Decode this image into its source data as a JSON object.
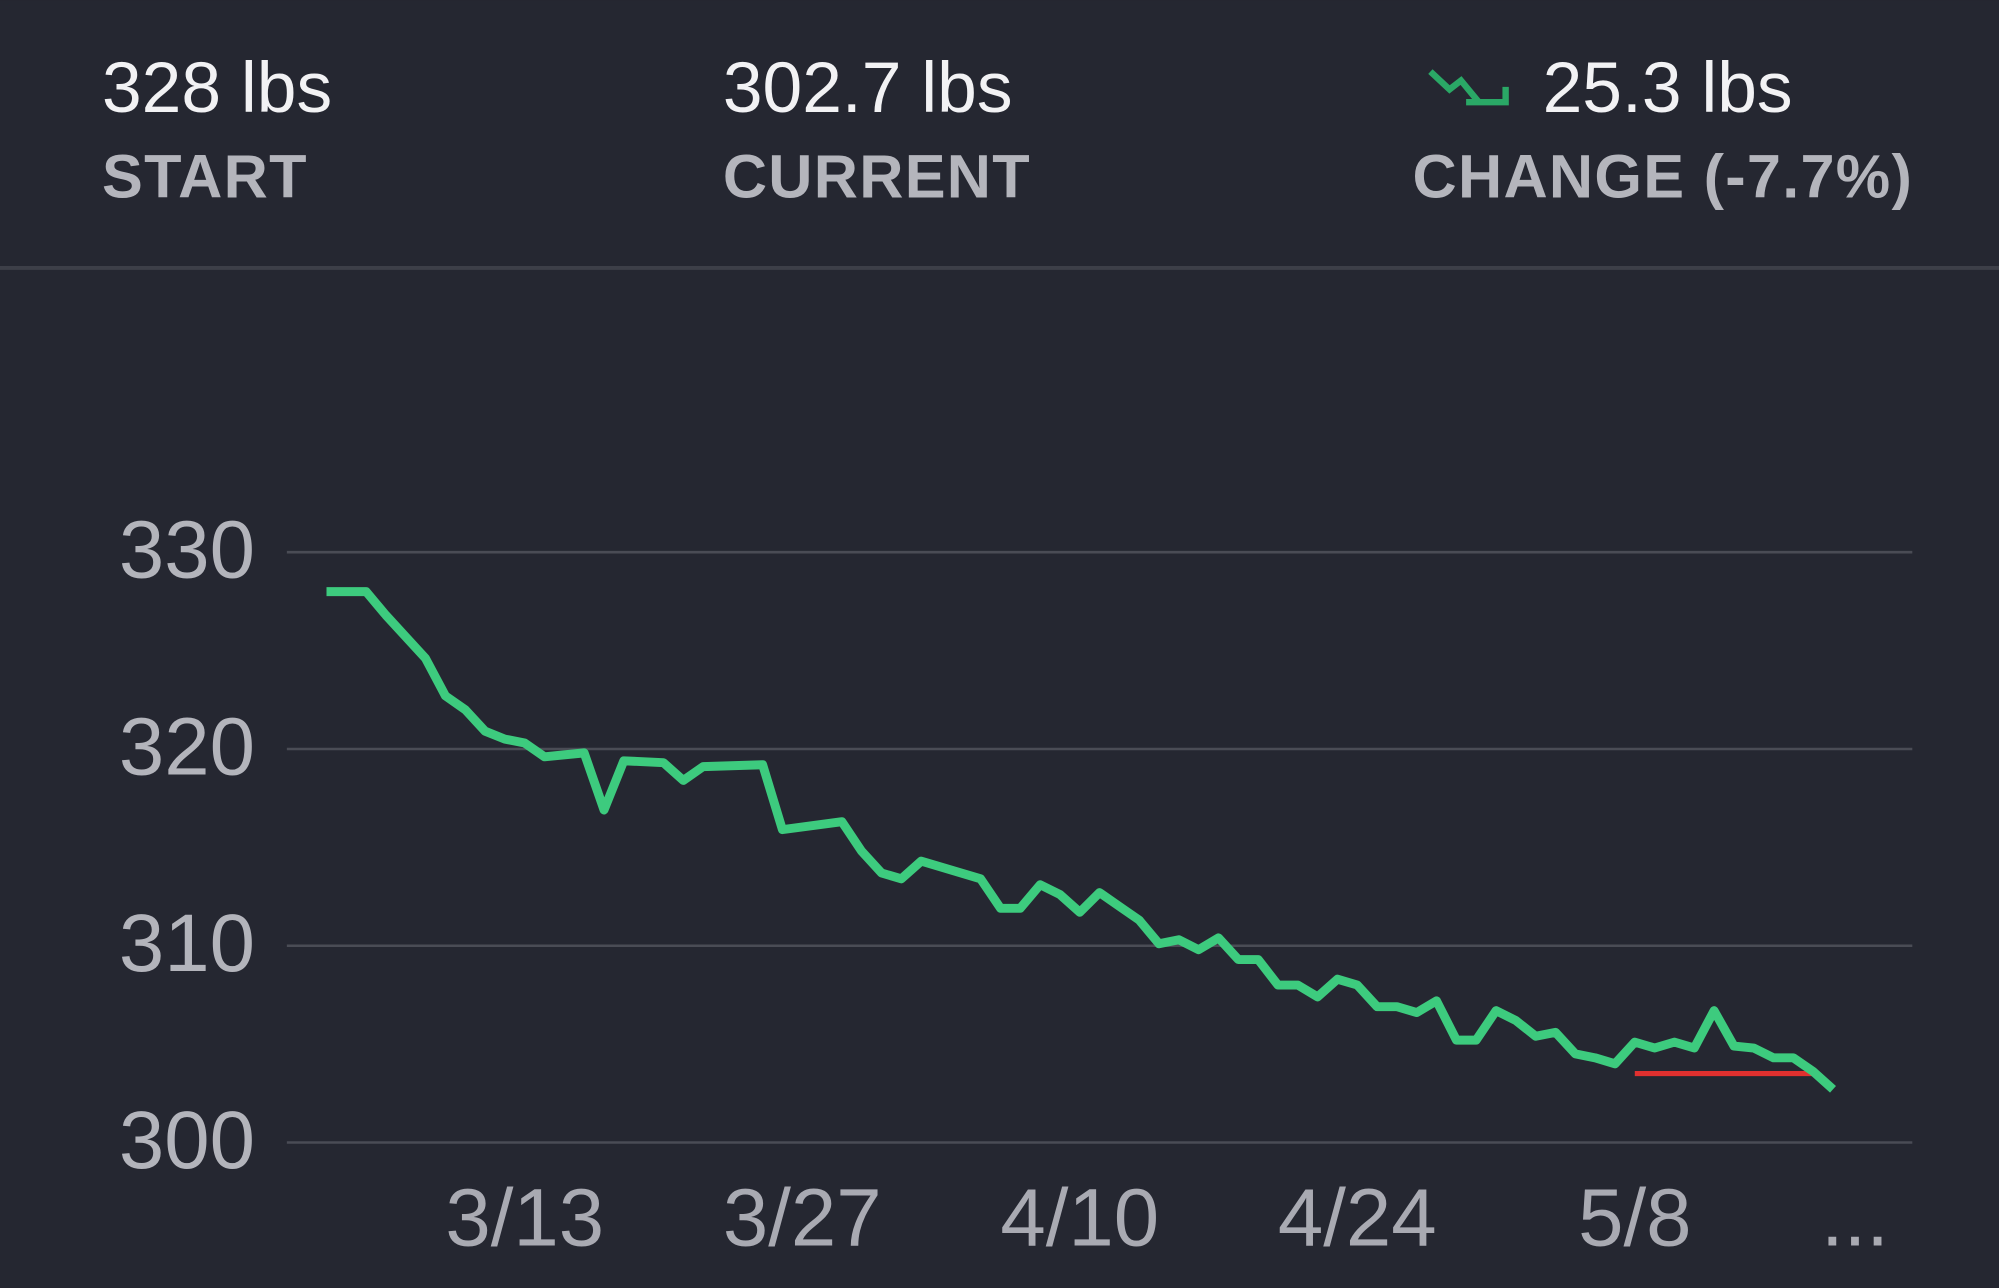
{
  "header": {
    "stats": [
      {
        "value": "328 lbs",
        "label": "START"
      },
      {
        "value": "302.7 lbs",
        "label": "CURRENT"
      },
      {
        "value": "25.3 lbs",
        "label": "CHANGE (-7.7%)"
      }
    ]
  },
  "chart_data": {
    "type": "line",
    "x": [
      "3/3",
      "3/5",
      "3/6",
      "3/8",
      "3/9",
      "3/10",
      "3/11",
      "3/12",
      "3/13",
      "3/14",
      "3/16",
      "3/17",
      "3/18",
      "3/20",
      "3/21",
      "3/22",
      "3/25",
      "3/26",
      "3/29",
      "3/30",
      "3/31",
      "4/1",
      "4/2",
      "4/5",
      "4/6",
      "4/7",
      "4/8",
      "4/9",
      "4/10",
      "4/11",
      "4/12",
      "4/13",
      "4/14",
      "4/15",
      "4/16",
      "4/17",
      "4/18",
      "4/19",
      "4/20",
      "4/21",
      "4/22",
      "4/23",
      "4/24",
      "4/25",
      "4/26",
      "4/27",
      "4/28",
      "4/29",
      "4/30",
      "5/1",
      "5/2",
      "5/3",
      "5/4",
      "5/5",
      "5/6",
      "5/7",
      "5/8",
      "5/9",
      "5/10",
      "5/11",
      "5/12",
      "5/13",
      "5/14",
      "5/15",
      "5/16",
      "5/17",
      "5/18"
    ],
    "series": [
      {
        "color": "#3dcb7e",
        "values": [
          328.0,
          328.0,
          326.8,
          324.6,
          322.7,
          322.0,
          320.9,
          320.5,
          320.3,
          319.6,
          319.8,
          316.9,
          319.4,
          319.3,
          318.4,
          319.1,
          319.2,
          315.9,
          316.3,
          314.8,
          313.7,
          313.4,
          314.3,
          313.4,
          311.9,
          311.9,
          313.1,
          312.6,
          311.7,
          312.7,
          312.0,
          311.3,
          310.1,
          310.3,
          309.8,
          310.4,
          309.3,
          309.3,
          308.0,
          308.0,
          307.4,
          308.3,
          308.0,
          306.9,
          306.9,
          306.6,
          307.2,
          305.2,
          305.2,
          306.7,
          306.2,
          305.4,
          305.6,
          304.5,
          304.3,
          304.0,
          305.1,
          304.8,
          305.1,
          304.8,
          306.7,
          304.9,
          304.8,
          304.3,
          304.3,
          303.6,
          302.7
        ]
      }
    ],
    "reference_line": {
      "value": 303.5,
      "color": "#e0302f",
      "x": [
        "5/8",
        "5/17"
      ]
    },
    "xlim": [
      "3/1",
      "5/22"
    ],
    "xticks": [
      "3/13",
      "3/27",
      "4/10",
      "4/24",
      "5/8"
    ],
    "ylim": [
      300,
      330
    ],
    "yticks": [
      300,
      310,
      320,
      330
    ],
    "grid": true,
    "more_label": "..."
  }
}
